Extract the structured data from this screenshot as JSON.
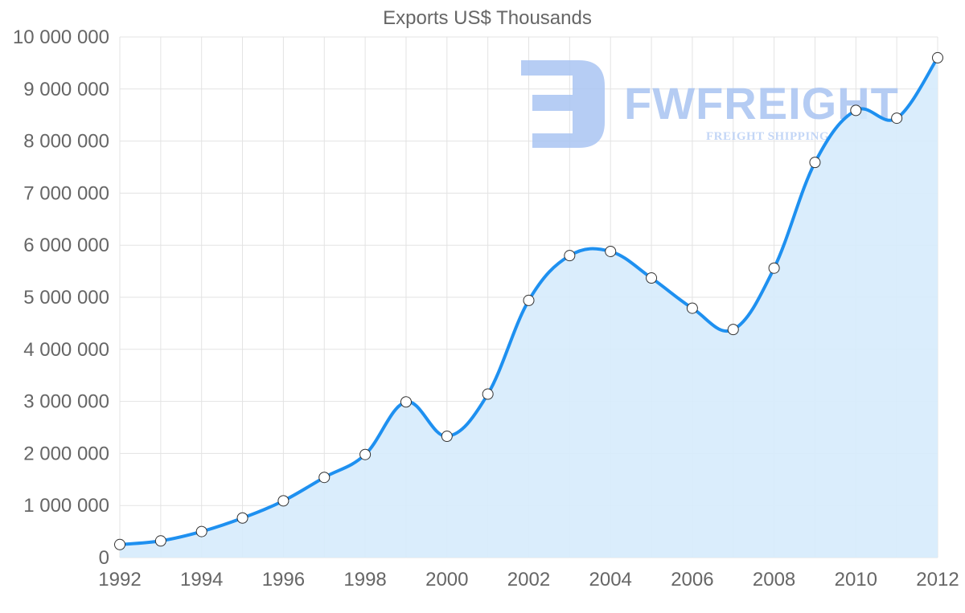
{
  "chart_data": {
    "type": "area",
    "title": "Exports US$ Thousands",
    "xlabel": "",
    "ylabel": "",
    "x": [
      1992,
      1993,
      1994,
      1995,
      1996,
      1997,
      1998,
      1999,
      2000,
      2001,
      2002,
      2003,
      2004,
      2005,
      2006,
      2007,
      2008,
      2009,
      2010,
      2011,
      2012
    ],
    "series": [
      {
        "name": "Exports US$ Thousands",
        "values": [
          250000,
          320000,
          500000,
          760000,
          1090000,
          1540000,
          1980000,
          2990000,
          2330000,
          3140000,
          4940000,
          5800000,
          5880000,
          5370000,
          4790000,
          4380000,
          5560000,
          7590000,
          8590000,
          8440000,
          9600000
        ]
      }
    ],
    "xlim": [
      1992,
      2012
    ],
    "ylim": [
      0,
      10000000
    ],
    "x_ticks": [
      "1992",
      "1994",
      "1996",
      "1998",
      "2000",
      "2002",
      "2004",
      "2006",
      "2008",
      "2010",
      "2012"
    ],
    "y_ticks": [
      "0",
      "1 000 000",
      "2 000 000",
      "3 000 000",
      "4 000 000",
      "5 000 000",
      "6 000 000",
      "7 000 000",
      "8 000 000",
      "9 000 000",
      "10 000 000"
    ],
    "grid": true,
    "colors": {
      "line": "#1e90f0",
      "fill": "#d6ebfc",
      "grid": "#e3e3e3",
      "point_fill": "#ffffff"
    }
  },
  "watermark": {
    "brand": "FWFREIGHT",
    "tagline": "FREIGHT SHIPPING"
  }
}
